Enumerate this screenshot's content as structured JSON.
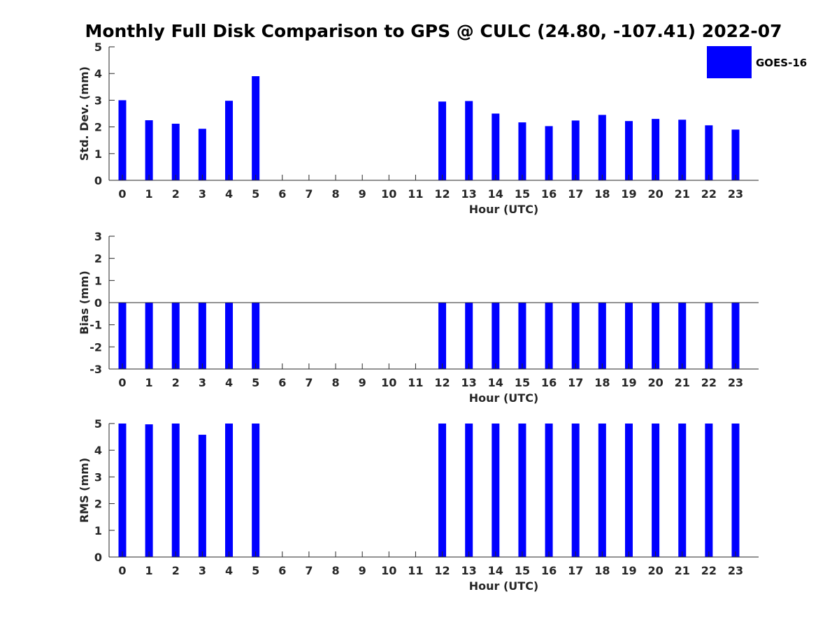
{
  "title": "Monthly Full Disk Comparison to GPS @ CULC (24.80, -107.41) 2022-07",
  "legend": {
    "series_name": "GOES-16",
    "color": "#0000ff"
  },
  "chart_data": [
    {
      "type": "bar",
      "ylabel": "Std. Dev. (mm)",
      "xlabel": "Hour (UTC)",
      "ylim": [
        0,
        5
      ],
      "yticks": [
        "0",
        "1",
        "2",
        "3",
        "4",
        "5"
      ],
      "categories": [
        "0",
        "1",
        "2",
        "3",
        "4",
        "5",
        "6",
        "7",
        "8",
        "9",
        "10",
        "11",
        "12",
        "13",
        "14",
        "15",
        "16",
        "17",
        "18",
        "19",
        "20",
        "21",
        "22",
        "23"
      ],
      "series": [
        {
          "name": "GOES-16",
          "values": [
            3.0,
            2.25,
            2.12,
            1.93,
            2.98,
            3.9,
            null,
            null,
            null,
            null,
            null,
            null,
            2.95,
            2.97,
            2.5,
            2.17,
            2.03,
            2.24,
            2.45,
            2.22,
            2.3,
            2.27,
            2.06,
            1.9
          ]
        }
      ]
    },
    {
      "type": "bar",
      "ylabel": "Bias (mm)",
      "xlabel": "Hour (UTC)",
      "ylim": [
        -3,
        3
      ],
      "yticks": [
        "-3",
        "-2",
        "-1",
        "0",
        "1",
        "2",
        "3"
      ],
      "categories": [
        "0",
        "1",
        "2",
        "3",
        "4",
        "5",
        "6",
        "7",
        "8",
        "9",
        "10",
        "11",
        "12",
        "13",
        "14",
        "15",
        "16",
        "17",
        "18",
        "19",
        "20",
        "21",
        "22",
        "23"
      ],
      "series": [
        {
          "name": "GOES-16",
          "values": [
            -3,
            -3,
            -3,
            -3,
            -3,
            -3,
            null,
            null,
            null,
            null,
            null,
            null,
            -3,
            -3,
            -3,
            -3,
            -3,
            -3,
            -3,
            -3,
            -3,
            -3,
            -3,
            -3
          ]
        }
      ]
    },
    {
      "type": "bar",
      "ylabel": "RMS (mm)",
      "xlabel": "Hour (UTC)",
      "ylim": [
        0,
        5
      ],
      "yticks": [
        "0",
        "1",
        "2",
        "3",
        "4",
        "5"
      ],
      "categories": [
        "0",
        "1",
        "2",
        "3",
        "4",
        "5",
        "6",
        "7",
        "8",
        "9",
        "10",
        "11",
        "12",
        "13",
        "14",
        "15",
        "16",
        "17",
        "18",
        "19",
        "20",
        "21",
        "22",
        "23"
      ],
      "series": [
        {
          "name": "GOES-16",
          "values": [
            5,
            4.97,
            5,
            4.58,
            5,
            5,
            null,
            null,
            null,
            null,
            null,
            null,
            5,
            5,
            5,
            5,
            5,
            5,
            5,
            5,
            5,
            5,
            5,
            5
          ]
        }
      ]
    }
  ]
}
